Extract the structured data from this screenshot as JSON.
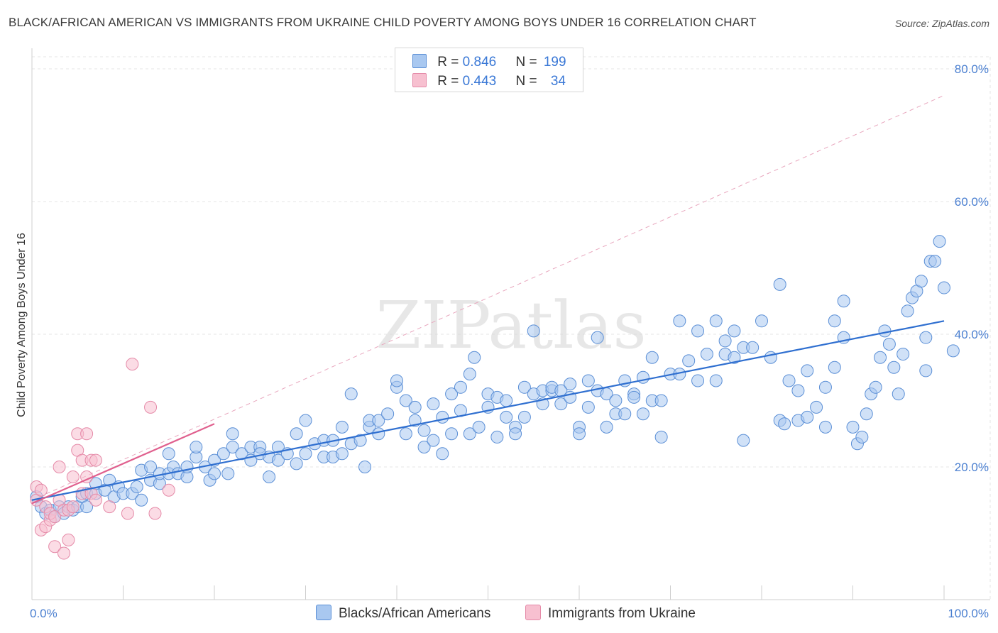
{
  "header": {
    "title": "BLACK/AFRICAN AMERICAN VS IMMIGRANTS FROM UKRAINE CHILD POVERTY AMONG BOYS UNDER 16 CORRELATION CHART",
    "source": "Source: ZipAtlas.com"
  },
  "watermark": "ZIPatlas",
  "legend": {
    "rows": [
      {
        "r_label": "R = ",
        "r_value": "0.846",
        "n_label": "N = ",
        "n_value": "199"
      },
      {
        "r_label": "R = ",
        "r_value": "0.443",
        "n_label": "N = ",
        "n_value": "34"
      }
    ]
  },
  "bottom_legend": {
    "series1": "Blacks/African Americans",
    "series2": "Immigrants from Ukraine"
  },
  "colors": {
    "blue_fill": "#a9c8f0",
    "blue_stroke": "#5b8fd6",
    "blue_line": "#2f6fd0",
    "pink_fill": "#f7c0d0",
    "pink_stroke": "#e58aa8",
    "pink_line": "#e0608e",
    "tick_text": "#4a7fd0",
    "grid": "#e6e6e6"
  },
  "chart_data": {
    "type": "scatter",
    "title": "BLACK/AFRICAN AMERICAN VS IMMIGRANTS FROM UKRAINE CHILD POVERTY AMONG BOYS UNDER 16 CORRELATION CHART",
    "xlabel": "",
    "ylabel": "Child Poverty Among Boys Under 16",
    "xlim": [
      0,
      100
    ],
    "ylim": [
      0,
      85
    ],
    "x_tick_labels": [
      "0.0%",
      "100.0%"
    ],
    "y_ticks": [
      20,
      40,
      60,
      80
    ],
    "y_tick_labels": [
      "20.0%",
      "40.0%",
      "60.0%",
      "80.0%"
    ],
    "legend_position": "top-center",
    "series": [
      {
        "name": "Blacks/African Americans",
        "R": 0.846,
        "N": 199,
        "trend": {
          "x": [
            0,
            100
          ],
          "y": [
            15.0,
            42.0
          ]
        },
        "points": [
          [
            0.5,
            15.5
          ],
          [
            1,
            14
          ],
          [
            1.5,
            13
          ],
          [
            2,
            13.5
          ],
          [
            2.5,
            12.5
          ],
          [
            3,
            14
          ],
          [
            3.5,
            13
          ],
          [
            4,
            14
          ],
          [
            4.5,
            13.5
          ],
          [
            5,
            14
          ],
          [
            5.5,
            15.5
          ],
          [
            6,
            14
          ],
          [
            6,
            16
          ],
          [
            7,
            16
          ],
          [
            7,
            17.5
          ],
          [
            8,
            16.5
          ],
          [
            8.5,
            18
          ],
          [
            9,
            15.5
          ],
          [
            9.5,
            17
          ],
          [
            10,
            16
          ],
          [
            11,
            16
          ],
          [
            11.5,
            17
          ],
          [
            12,
            15
          ],
          [
            12,
            19.5
          ],
          [
            13,
            18
          ],
          [
            13,
            20
          ],
          [
            14,
            17.5
          ],
          [
            14,
            19
          ],
          [
            15,
            19
          ],
          [
            15,
            22
          ],
          [
            15.5,
            20
          ],
          [
            16,
            19
          ],
          [
            17,
            18.5
          ],
          [
            17,
            20
          ],
          [
            18,
            21.5
          ],
          [
            18,
            23
          ],
          [
            19,
            20
          ],
          [
            19.5,
            18
          ],
          [
            20,
            21
          ],
          [
            20,
            19
          ],
          [
            21,
            22
          ],
          [
            21.5,
            19
          ],
          [
            22,
            23
          ],
          [
            22,
            25
          ],
          [
            23,
            22
          ],
          [
            24,
            21
          ],
          [
            24,
            23
          ],
          [
            25,
            23
          ],
          [
            25,
            22
          ],
          [
            26,
            21.5
          ],
          [
            26,
            18.5
          ],
          [
            27,
            23
          ],
          [
            27,
            21
          ],
          [
            28,
            22
          ],
          [
            29,
            20.5
          ],
          [
            29,
            25
          ],
          [
            30,
            22
          ],
          [
            30,
            27
          ],
          [
            31,
            23.5
          ],
          [
            32,
            24
          ],
          [
            32,
            21.5
          ],
          [
            33,
            21.5
          ],
          [
            33,
            24
          ],
          [
            34,
            26
          ],
          [
            34,
            22
          ],
          [
            35,
            23.5
          ],
          [
            35,
            31
          ],
          [
            36,
            24
          ],
          [
            36.5,
            20
          ],
          [
            37,
            26
          ],
          [
            37,
            27
          ],
          [
            38,
            27
          ],
          [
            38,
            25
          ],
          [
            39,
            28
          ],
          [
            40,
            32
          ],
          [
            40,
            33
          ],
          [
            41,
            30
          ],
          [
            41,
            25
          ],
          [
            42,
            27
          ],
          [
            42,
            29
          ],
          [
            43,
            25.5
          ],
          [
            43,
            23
          ],
          [
            44,
            29.5
          ],
          [
            44,
            24
          ],
          [
            45,
            27.5
          ],
          [
            45,
            22
          ],
          [
            46,
            25
          ],
          [
            46,
            31
          ],
          [
            47,
            32
          ],
          [
            47,
            28.5
          ],
          [
            48,
            34
          ],
          [
            48,
            25
          ],
          [
            48.5,
            36.5
          ],
          [
            49,
            26
          ],
          [
            50,
            31
          ],
          [
            50,
            29
          ],
          [
            51,
            24.5
          ],
          [
            51,
            30.5
          ],
          [
            52,
            30
          ],
          [
            52,
            27.5
          ],
          [
            53,
            26
          ],
          [
            53,
            25
          ],
          [
            54,
            27.5
          ],
          [
            54,
            32
          ],
          [
            55,
            40.5
          ],
          [
            55,
            31
          ],
          [
            56,
            31.5
          ],
          [
            56,
            29.5
          ],
          [
            57,
            31.5
          ],
          [
            57,
            32
          ],
          [
            58,
            29.5
          ],
          [
            58,
            31.5
          ],
          [
            59,
            32.5
          ],
          [
            59,
            30.5
          ],
          [
            60,
            26
          ],
          [
            60,
            25
          ],
          [
            61,
            33
          ],
          [
            61,
            29
          ],
          [
            62,
            31.5
          ],
          [
            62,
            39.5
          ],
          [
            63,
            31
          ],
          [
            63,
            26
          ],
          [
            64,
            28
          ],
          [
            64,
            30
          ],
          [
            65,
            28
          ],
          [
            65,
            33
          ],
          [
            66,
            31
          ],
          [
            66,
            30.5
          ],
          [
            67,
            28
          ],
          [
            67,
            33.5
          ],
          [
            68,
            36.5
          ],
          [
            68,
            30
          ],
          [
            69,
            24.5
          ],
          [
            69,
            30
          ],
          [
            70,
            34
          ],
          [
            71,
            42
          ],
          [
            71,
            34
          ],
          [
            72,
            36
          ],
          [
            73,
            40.5
          ],
          [
            73,
            33
          ],
          [
            74,
            37
          ],
          [
            75,
            42
          ],
          [
            75,
            33
          ],
          [
            76,
            39
          ],
          [
            76,
            37
          ],
          [
            77,
            36.5
          ],
          [
            77,
            40.5
          ],
          [
            78,
            24
          ],
          [
            78,
            38
          ],
          [
            79,
            38
          ],
          [
            80,
            42
          ],
          [
            81,
            36.5
          ],
          [
            82,
            47.5
          ],
          [
            82,
            27
          ],
          [
            82.5,
            26.5
          ],
          [
            83,
            33
          ],
          [
            84,
            27
          ],
          [
            84,
            31.5
          ],
          [
            85,
            27.5
          ],
          [
            85,
            34.5
          ],
          [
            86,
            29
          ],
          [
            87,
            26
          ],
          [
            87,
            32
          ],
          [
            88,
            35
          ],
          [
            88,
            42
          ],
          [
            89,
            45
          ],
          [
            89,
            39.5
          ],
          [
            90,
            26
          ],
          [
            90.5,
            23.5
          ],
          [
            91,
            24.5
          ],
          [
            91.5,
            28
          ],
          [
            92,
            31
          ],
          [
            92.5,
            32
          ],
          [
            93,
            36.5
          ],
          [
            93.5,
            40.5
          ],
          [
            94,
            38.5
          ],
          [
            94.5,
            35
          ],
          [
            95,
            31
          ],
          [
            95.5,
            37
          ],
          [
            96,
            43.5
          ],
          [
            96.5,
            45.5
          ],
          [
            97,
            46.5
          ],
          [
            97.5,
            48
          ],
          [
            98,
            34.5
          ],
          [
            98,
            39.5
          ],
          [
            98.5,
            51
          ],
          [
            99,
            51
          ],
          [
            99.5,
            54
          ],
          [
            100,
            47
          ],
          [
            101,
            37.5
          ]
        ]
      },
      {
        "name": "Immigrants from Ukraine",
        "R": 0.443,
        "N": 34,
        "trend": {
          "x": [
            0,
            20
          ],
          "y": [
            14.5,
            26.5
          ]
        },
        "points": [
          [
            0.5,
            17
          ],
          [
            0.5,
            15
          ],
          [
            1,
            16.5
          ],
          [
            1,
            10.5
          ],
          [
            1.5,
            14
          ],
          [
            1.5,
            11
          ],
          [
            2,
            12
          ],
          [
            2,
            13
          ],
          [
            2.5,
            8
          ],
          [
            2.5,
            12.5
          ],
          [
            3,
            15
          ],
          [
            3,
            20
          ],
          [
            3.5,
            7
          ],
          [
            3.5,
            13.5
          ],
          [
            4,
            9
          ],
          [
            4,
            13.5
          ],
          [
            4.5,
            18.5
          ],
          [
            4.5,
            14
          ],
          [
            5,
            22.5
          ],
          [
            5,
            25
          ],
          [
            5.5,
            21
          ],
          [
            5.5,
            16
          ],
          [
            6,
            25
          ],
          [
            6,
            18.5
          ],
          [
            6.5,
            21
          ],
          [
            6.5,
            16
          ],
          [
            7,
            21
          ],
          [
            7,
            15
          ],
          [
            8.5,
            14
          ],
          [
            10.5,
            13
          ],
          [
            11,
            35.5
          ],
          [
            13,
            29
          ],
          [
            13.5,
            13
          ],
          [
            15,
            16.5
          ]
        ]
      }
    ]
  }
}
